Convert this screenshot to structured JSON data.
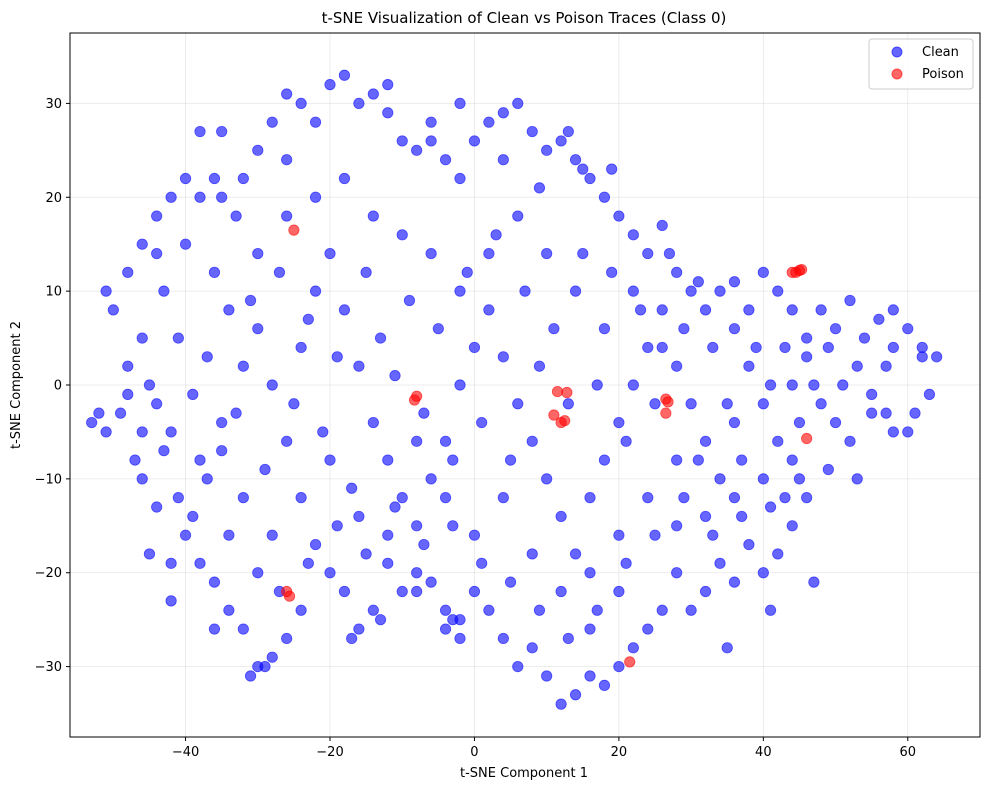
{
  "chart_data": {
    "type": "scatter",
    "title": "t-SNE Visualization of Clean vs Poison Traces (Class 0)",
    "xlabel": "t-SNE Component 1",
    "ylabel": "t-SNE Component 2",
    "xlim": [
      -56,
      70
    ],
    "ylim": [
      -37.5,
      37.5
    ],
    "xticks": [
      -40,
      -20,
      0,
      20,
      40,
      60
    ],
    "yticks": [
      -30,
      -20,
      -10,
      0,
      10,
      20,
      30
    ],
    "grid": true,
    "legend_position": "top-right",
    "marker_alpha": 0.6,
    "series": [
      {
        "name": "Clean",
        "color": "#0000ff",
        "note": "dense cloud; representative sample",
        "points": [
          [
            -50,
            8
          ],
          [
            -48,
            12
          ],
          [
            -46,
            5
          ],
          [
            -44,
            -2
          ],
          [
            -43,
            10
          ],
          [
            -42,
            -5
          ],
          [
            -45,
            0
          ],
          [
            -47,
            -8
          ],
          [
            -49,
            -3
          ],
          [
            -51,
            10
          ],
          [
            -40,
            15
          ],
          [
            -38,
            20
          ],
          [
            -36,
            22
          ],
          [
            -35,
            27
          ],
          [
            -33,
            18
          ],
          [
            -30,
            25
          ],
          [
            -28,
            28
          ],
          [
            -26,
            31
          ],
          [
            -24,
            30
          ],
          [
            -22,
            28
          ],
          [
            -20,
            32
          ],
          [
            -18,
            33
          ],
          [
            -16,
            30
          ],
          [
            -14,
            31
          ],
          [
            -12,
            29
          ],
          [
            -10,
            26
          ],
          [
            -8,
            25
          ],
          [
            -6,
            28
          ],
          [
            -4,
            24
          ],
          [
            -2,
            22
          ],
          [
            0,
            26
          ],
          [
            2,
            28
          ],
          [
            4,
            29
          ],
          [
            6,
            30
          ],
          [
            8,
            27
          ],
          [
            10,
            25
          ],
          [
            12,
            26
          ],
          [
            14,
            24
          ],
          [
            16,
            22
          ],
          [
            18,
            20
          ],
          [
            20,
            18
          ],
          [
            22,
            16
          ],
          [
            24,
            14
          ],
          [
            26,
            17
          ],
          [
            28,
            12
          ],
          [
            30,
            10
          ],
          [
            32,
            8
          ],
          [
            34,
            10
          ],
          [
            36,
            6
          ],
          [
            38,
            8
          ],
          [
            40,
            12
          ],
          [
            42,
            10
          ],
          [
            44,
            8
          ],
          [
            46,
            5
          ],
          [
            48,
            8
          ],
          [
            50,
            6
          ],
          [
            52,
            9
          ],
          [
            54,
            5
          ],
          [
            56,
            7
          ],
          [
            58,
            4
          ],
          [
            60,
            6
          ],
          [
            62,
            3
          ],
          [
            64,
            3
          ],
          [
            63,
            -1
          ],
          [
            61,
            -3
          ],
          [
            58,
            -5
          ],
          [
            55,
            -3
          ],
          [
            52,
            -6
          ],
          [
            49,
            -9
          ],
          [
            46,
            -12
          ],
          [
            44,
            -15
          ],
          [
            42,
            -18
          ],
          [
            40,
            -20
          ],
          [
            38,
            -17
          ],
          [
            36,
            -21
          ],
          [
            34,
            -19
          ],
          [
            32,
            -22
          ],
          [
            30,
            -24
          ],
          [
            28,
            -20
          ],
          [
            26,
            -24
          ],
          [
            24,
            -26
          ],
          [
            22,
            -28
          ],
          [
            20,
            -30
          ],
          [
            18,
            -32
          ],
          [
            16,
            -31
          ],
          [
            14,
            -33
          ],
          [
            12,
            -34
          ],
          [
            10,
            -31
          ],
          [
            8,
            -28
          ],
          [
            6,
            -30
          ],
          [
            4,
            -27
          ],
          [
            2,
            -24
          ],
          [
            0,
            -22
          ],
          [
            -2,
            -25
          ],
          [
            -4,
            -26
          ],
          [
            -6,
            -21
          ],
          [
            -8,
            -20
          ],
          [
            -10,
            -22
          ],
          [
            -12,
            -19
          ],
          [
            -14,
            -24
          ],
          [
            -16,
            -26
          ],
          [
            -18,
            -22
          ],
          [
            -20,
            -20
          ],
          [
            -22,
            -17
          ],
          [
            -24,
            -24
          ],
          [
            -26,
            -27
          ],
          [
            -28,
            -29
          ],
          [
            -30,
            -30
          ],
          [
            -32,
            -26
          ],
          [
            -34,
            -24
          ],
          [
            -36,
            -21
          ],
          [
            -38,
            -19
          ],
          [
            -40,
            -16
          ],
          [
            -42,
            -19
          ],
          [
            -44,
            -13
          ],
          [
            -46,
            -10
          ],
          [
            -38,
            -8
          ],
          [
            -35,
            -4
          ],
          [
            -32,
            2
          ],
          [
            -30,
            6
          ],
          [
            -28,
            0
          ],
          [
            -26,
            -6
          ],
          [
            -24,
            4
          ],
          [
            -22,
            10
          ],
          [
            -20,
            14
          ],
          [
            -18,
            8
          ],
          [
            -16,
            2
          ],
          [
            -14,
            -4
          ],
          [
            -12,
            -8
          ],
          [
            -10,
            -12
          ],
          [
            -8,
            -15
          ],
          [
            -6,
            -10
          ],
          [
            -4,
            -6
          ],
          [
            -2,
            0
          ],
          [
            0,
            4
          ],
          [
            2,
            8
          ],
          [
            4,
            3
          ],
          [
            6,
            -2
          ],
          [
            8,
            -6
          ],
          [
            10,
            -10
          ],
          [
            12,
            -14
          ],
          [
            14,
            -18
          ],
          [
            16,
            -12
          ],
          [
            18,
            -8
          ],
          [
            20,
            -4
          ],
          [
            22,
            0
          ],
          [
            24,
            4
          ],
          [
            26,
            8
          ],
          [
            28,
            2
          ],
          [
            30,
            -2
          ],
          [
            32,
            -6
          ],
          [
            34,
            -10
          ],
          [
            36,
            -4
          ],
          [
            38,
            2
          ],
          [
            40,
            -2
          ],
          [
            42,
            -6
          ],
          [
            44,
            0
          ],
          [
            46,
            3
          ],
          [
            48,
            -2
          ],
          [
            50,
            -4
          ],
          [
            -44,
            18
          ],
          [
            -42,
            20
          ],
          [
            -40,
            22
          ],
          [
            -36,
            12
          ],
          [
            -34,
            8
          ],
          [
            -30,
            14
          ],
          [
            -26,
            18
          ],
          [
            -22,
            20
          ],
          [
            -18,
            22
          ],
          [
            -14,
            18
          ],
          [
            -10,
            16
          ],
          [
            -6,
            14
          ],
          [
            -2,
            10
          ],
          [
            2,
            14
          ],
          [
            6,
            18
          ],
          [
            10,
            14
          ],
          [
            14,
            10
          ],
          [
            18,
            6
          ],
          [
            22,
            10
          ],
          [
            26,
            4
          ],
          [
            -32,
            -12
          ],
          [
            -28,
            -16
          ],
          [
            -24,
            -12
          ],
          [
            -20,
            -8
          ],
          [
            -16,
            -14
          ],
          [
            -12,
            -16
          ],
          [
            -8,
            -6
          ],
          [
            -4,
            -12
          ],
          [
            0,
            -16
          ],
          [
            4,
            -12
          ],
          [
            8,
            -18
          ],
          [
            12,
            -22
          ],
          [
            16,
            -20
          ],
          [
            20,
            -16
          ],
          [
            24,
            -12
          ],
          [
            28,
            -8
          ],
          [
            32,
            -14
          ],
          [
            36,
            -12
          ],
          [
            40,
            -10
          ],
          [
            44,
            -8
          ],
          [
            -3,
            -25
          ],
          [
            -2,
            -27
          ],
          [
            -4,
            -24
          ],
          [
            35,
            -28
          ],
          [
            41,
            -24
          ],
          [
            -31,
            -31
          ],
          [
            -29,
            -30
          ],
          [
            -17,
            -27
          ],
          [
            -13,
            -25
          ],
          [
            -8,
            -22
          ],
          [
            -52,
            -3
          ],
          [
            -53,
            -4
          ],
          [
            -51,
            -5
          ],
          [
            -48,
            2
          ],
          [
            -46,
            15
          ],
          [
            -45,
            -18
          ],
          [
            -42,
            -23
          ],
          [
            -36,
            -26
          ],
          [
            16,
            -26
          ],
          [
            20,
            -22
          ],
          [
            28,
            -15
          ],
          [
            31,
            11
          ],
          [
            36,
            11
          ],
          [
            43,
            -12
          ],
          [
            47,
            -21
          ],
          [
            53,
            -10
          ],
          [
            57,
            -3
          ],
          [
            60,
            -5
          ],
          [
            62,
            4
          ],
          [
            58,
            8
          ],
          [
            -41,
            5
          ],
          [
            -39,
            -1
          ],
          [
            -37,
            3
          ],
          [
            -35,
            -7
          ],
          [
            -33,
            -3
          ],
          [
            -31,
            9
          ],
          [
            -29,
            -9
          ],
          [
            -27,
            12
          ],
          [
            -25,
            -2
          ],
          [
            -23,
            7
          ],
          [
            -21,
            -5
          ],
          [
            -19,
            3
          ],
          [
            -17,
            -11
          ],
          [
            -15,
            12
          ],
          [
            -13,
            5
          ],
          [
            -11,
            1
          ],
          [
            -9,
            9
          ],
          [
            -7,
            -3
          ],
          [
            -5,
            6
          ],
          [
            -3,
            -8
          ],
          [
            -1,
            12
          ],
          [
            1,
            -4
          ],
          [
            3,
            16
          ],
          [
            5,
            -8
          ],
          [
            7,
            10
          ],
          [
            9,
            2
          ],
          [
            11,
            6
          ],
          [
            13,
            -2
          ],
          [
            15,
            14
          ],
          [
            17,
            0
          ],
          [
            19,
            12
          ],
          [
            21,
            -6
          ],
          [
            23,
            8
          ],
          [
            25,
            -2
          ],
          [
            27,
            14
          ],
          [
            29,
            6
          ],
          [
            31,
            -8
          ],
          [
            33,
            4
          ],
          [
            35,
            -2
          ],
          [
            37,
            -8
          ],
          [
            39,
            4
          ],
          [
            41,
            0
          ],
          [
            43,
            4
          ],
          [
            45,
            -4
          ],
          [
            47,
            0
          ],
          [
            49,
            4
          ],
          [
            51,
            0
          ],
          [
            53,
            2
          ],
          [
            55,
            -1
          ],
          [
            57,
            2
          ],
          [
            -2,
            30
          ],
          [
            -6,
            26
          ],
          [
            -12,
            32
          ],
          [
            4,
            24
          ],
          [
            9,
            21
          ],
          [
            13,
            27
          ],
          [
            15,
            23
          ],
          [
            19,
            23
          ],
          [
            -26,
            24
          ],
          [
            -32,
            22
          ],
          [
            -38,
            27
          ],
          [
            -35,
            20
          ],
          [
            -44,
            14
          ],
          [
            -48,
            -1
          ],
          [
            -46,
            -5
          ],
          [
            -43,
            -7
          ],
          [
            -41,
            -12
          ],
          [
            -39,
            -14
          ],
          [
            -37,
            -10
          ],
          [
            -34,
            -16
          ],
          [
            -30,
            -20
          ],
          [
            -27,
            -22
          ],
          [
            -23,
            -19
          ],
          [
            -19,
            -15
          ],
          [
            -15,
            -18
          ],
          [
            -11,
            -13
          ],
          [
            -7,
            -17
          ],
          [
            -3,
            -15
          ],
          [
            1,
            -19
          ],
          [
            5,
            -21
          ],
          [
            9,
            -24
          ],
          [
            13,
            -27
          ],
          [
            17,
            -24
          ],
          [
            21,
            -19
          ],
          [
            25,
            -16
          ],
          [
            29,
            -12
          ],
          [
            33,
            -16
          ],
          [
            37,
            -14
          ],
          [
            41,
            -13
          ],
          [
            45,
            -10
          ]
        ]
      },
      {
        "name": "Poison",
        "color": "#ff0000",
        "points": [
          [
            -25,
            16.5
          ],
          [
            -8,
            -1.2
          ],
          [
            -8.3,
            -1.6
          ],
          [
            11,
            -3.2
          ],
          [
            11.5,
            -0.7
          ],
          [
            12,
            -4
          ],
          [
            12.5,
            -3.8
          ],
          [
            12.8,
            -0.8
          ],
          [
            26.5,
            -1.5
          ],
          [
            26.8,
            -1.8
          ],
          [
            26.5,
            -3
          ],
          [
            44,
            12
          ],
          [
            44.5,
            12
          ],
          [
            45,
            12.2
          ],
          [
            45.3,
            12.3
          ],
          [
            46,
            -5.7
          ],
          [
            -26,
            -22
          ],
          [
            -25.6,
            -22.5
          ],
          [
            21.5,
            -29.5
          ]
        ]
      }
    ]
  }
}
